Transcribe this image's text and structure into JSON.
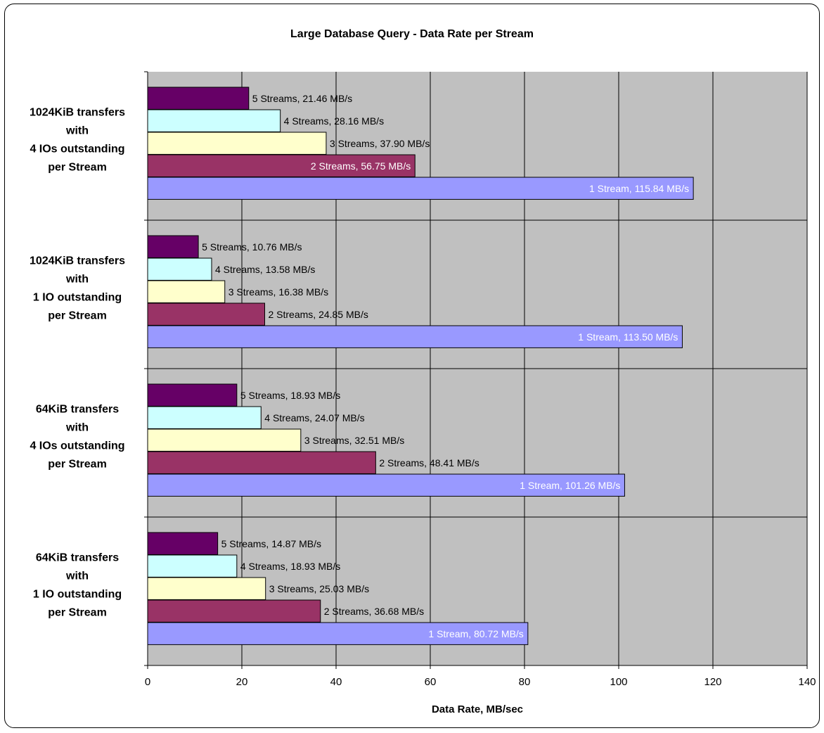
{
  "chart_data": {
    "type": "bar",
    "orientation": "horizontal",
    "title": "Large Database Query - Data Rate per Stream",
    "xlabel": "Data Rate, MB/sec",
    "ylabel": "",
    "xlim": [
      0,
      140
    ],
    "xticks": [
      0,
      20,
      40,
      60,
      80,
      100,
      120,
      140
    ],
    "grid": true,
    "legend": "none",
    "colors": {
      "plot_bg": "#c0c0c0",
      "gridline": "#000000",
      "bar_border": "#000000"
    },
    "categories": [
      {
        "lines": [
          "1024KiB transfers",
          "with",
          "4 IOs outstanding",
          "per Stream"
        ]
      },
      {
        "lines": [
          "1024KiB transfers",
          "with",
          "1 IO outstanding",
          "per Stream"
        ]
      },
      {
        "lines": [
          "64KiB transfers",
          "with",
          "4 IOs outstanding",
          "per Stream"
        ]
      },
      {
        "lines": [
          "64KiB transfers",
          "with",
          "1 IO outstanding",
          "per Stream"
        ]
      }
    ],
    "series": [
      {
        "streams": 5,
        "color": "#660066",
        "label_color": "#000000",
        "label_inside": false,
        "values": [
          21.46,
          10.76,
          18.93,
          14.87
        ],
        "labels": [
          "5 Streams, 21.46  MB/s",
          "5 Streams, 10.76  MB/s",
          "5 Streams, 18.93  MB/s",
          "5 Streams, 14.87  MB/s"
        ]
      },
      {
        "streams": 4,
        "color": "#ccffff",
        "label_color": "#000000",
        "label_inside": false,
        "values": [
          28.16,
          13.58,
          24.07,
          18.93
        ],
        "labels": [
          "4 Streams, 28.16  MB/s",
          "4 Streams, 13.58  MB/s",
          "4 Streams, 24.07  MB/s",
          "4 Streams, 18.93  MB/s"
        ]
      },
      {
        "streams": 3,
        "color": "#ffffcc",
        "label_color": "#000000",
        "label_inside": false,
        "values": [
          37.9,
          16.38,
          32.51,
          25.03
        ],
        "labels": [
          "3 Streams, 37.90  MB/s",
          "3 Streams, 16.38  MB/s",
          "3 Streams, 32.51  MB/s",
          "3 Streams, 25.03  MB/s"
        ]
      },
      {
        "streams": 2,
        "color": "#993366",
        "label_color": "#000000",
        "label_inside": false,
        "values": [
          56.75,
          24.85,
          48.41,
          36.68
        ],
        "labels": [
          "2 Streams, 56.75  MB/s",
          "2 Streams, 24.85  MB/s",
          "2 Streams, 48.41  MB/s",
          "2 Streams, 36.68  MB/s"
        ],
        "label_inside_flags": [
          true,
          false,
          false,
          false
        ]
      },
      {
        "streams": 1,
        "color": "#9999ff",
        "label_color": "#ffffff",
        "label_inside": true,
        "values": [
          115.84,
          113.5,
          101.26,
          80.72
        ],
        "labels": [
          "1 Stream, 115.84  MB/s",
          "1 Stream, 113.50  MB/s",
          "1 Stream, 101.26  MB/s",
          "1 Stream, 80.72  MB/s"
        ]
      }
    ]
  }
}
